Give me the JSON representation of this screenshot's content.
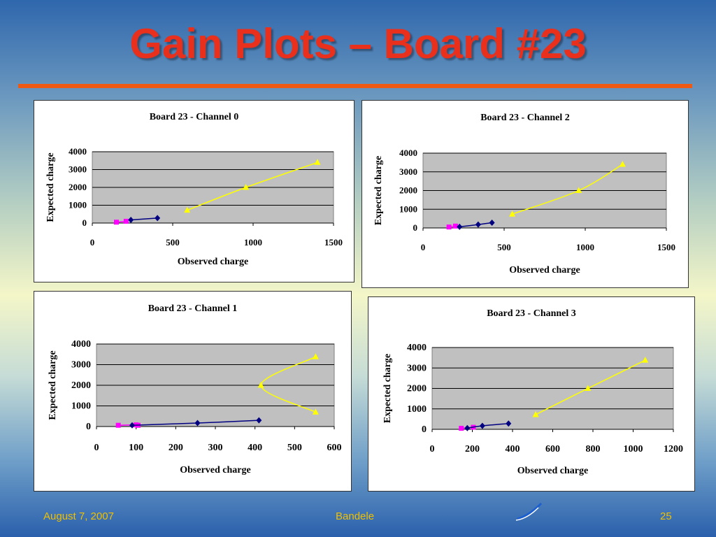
{
  "slide": {
    "title": "Gain Plots – Board #23",
    "footer_date": "August 7, 2007",
    "footer_author": "Bandele",
    "footer_page": "25",
    "accent_color": "#e8301c",
    "rule_color": "#ee5a14",
    "footer_color": "#f0c000"
  },
  "chart_data": [
    {
      "type": "scatter",
      "title": "Board 23 - Channel 0",
      "xlabel": "Observed charge",
      "ylabel": "Expected charge",
      "xlim": [
        0,
        1500
      ],
      "ylim": [
        0,
        4000
      ],
      "xticks": [
        0,
        500,
        1000,
        1500
      ],
      "yticks": [
        0,
        1000,
        2000,
        3000,
        4000
      ],
      "grid": true,
      "plot_bg": "#c0c0c0",
      "series": [
        {
          "marker": "square",
          "color": "#ff00ff",
          "points": [
            [
              150,
              50
            ],
            [
              210,
              100
            ]
          ]
        },
        {
          "marker": "diamond",
          "color": "#000080",
          "points": [
            [
              240,
              175
            ],
            [
              405,
              280
            ]
          ]
        },
        {
          "marker": "triangle",
          "color": "#ffff00",
          "points": [
            [
              590,
              720
            ],
            [
              955,
              2000
            ],
            [
              1400,
              3400
            ]
          ]
        }
      ]
    },
    {
      "type": "scatter",
      "title": "Board 23 - Channel 2",
      "xlabel": "Observed charge",
      "ylabel": "Expected charge",
      "xlim": [
        0,
        1500
      ],
      "ylim": [
        0,
        4000
      ],
      "xticks": [
        0,
        500,
        1000,
        1500
      ],
      "yticks": [
        0,
        1000,
        2000,
        3000,
        4000
      ],
      "grid": true,
      "plot_bg": "#c0c0c0",
      "series": [
        {
          "marker": "square",
          "color": "#ff00ff",
          "points": [
            [
              160,
              50
            ],
            [
              200,
              100
            ]
          ]
        },
        {
          "marker": "diamond",
          "color": "#000080",
          "points": [
            [
              225,
              60
            ],
            [
              340,
              180
            ],
            [
              425,
              280
            ]
          ]
        },
        {
          "marker": "triangle",
          "color": "#ffff00",
          "points": [
            [
              550,
              740
            ],
            [
              960,
              2000
            ],
            [
              1230,
              3400
            ]
          ]
        }
      ]
    },
    {
      "type": "scatter",
      "title": "Board 23 - Channel 1",
      "xlabel": "Observed charge",
      "ylabel": "Expected charge",
      "xlim": [
        0,
        600
      ],
      "ylim": [
        0,
        4000
      ],
      "xticks": [
        0,
        100,
        200,
        300,
        400,
        500,
        600
      ],
      "yticks": [
        0,
        1000,
        2000,
        3000,
        4000
      ],
      "grid": true,
      "plot_bg": "#c0c0c0",
      "series": [
        {
          "marker": "square",
          "color": "#ff00ff",
          "points": [
            [
              55,
              60
            ],
            [
              100,
              80
            ],
            [
              105,
              60
            ]
          ]
        },
        {
          "marker": "diamond",
          "color": "#000080",
          "points": [
            [
              90,
              60
            ],
            [
              255,
              170
            ],
            [
              410,
              300
            ]
          ]
        },
        {
          "marker": "triangle",
          "color": "#ffff00",
          "points": [
            [
              553,
              3380
            ],
            [
              415,
              2000
            ],
            [
              553,
              700
            ]
          ]
        }
      ]
    },
    {
      "type": "scatter",
      "title": "Board 23 - Channel 3",
      "xlabel": "Observed charge",
      "ylabel": "Expected charge",
      "xlim": [
        0,
        1200
      ],
      "ylim": [
        0,
        4000
      ],
      "xticks": [
        0,
        200,
        400,
        600,
        800,
        1000,
        1200
      ],
      "yticks": [
        0,
        1000,
        2000,
        3000,
        4000
      ],
      "grid": true,
      "plot_bg": "#c0c0c0",
      "series": [
        {
          "marker": "square",
          "color": "#ff00ff",
          "points": [
            [
              145,
              50
            ],
            [
              205,
              100
            ]
          ]
        },
        {
          "marker": "diamond",
          "color": "#000080",
          "points": [
            [
              175,
              60
            ],
            [
              250,
              170
            ],
            [
              380,
              280
            ]
          ]
        },
        {
          "marker": "triangle",
          "color": "#ffff00",
          "points": [
            [
              515,
              720
            ],
            [
              775,
              2000
            ],
            [
              1060,
              3380
            ]
          ]
        }
      ]
    }
  ]
}
